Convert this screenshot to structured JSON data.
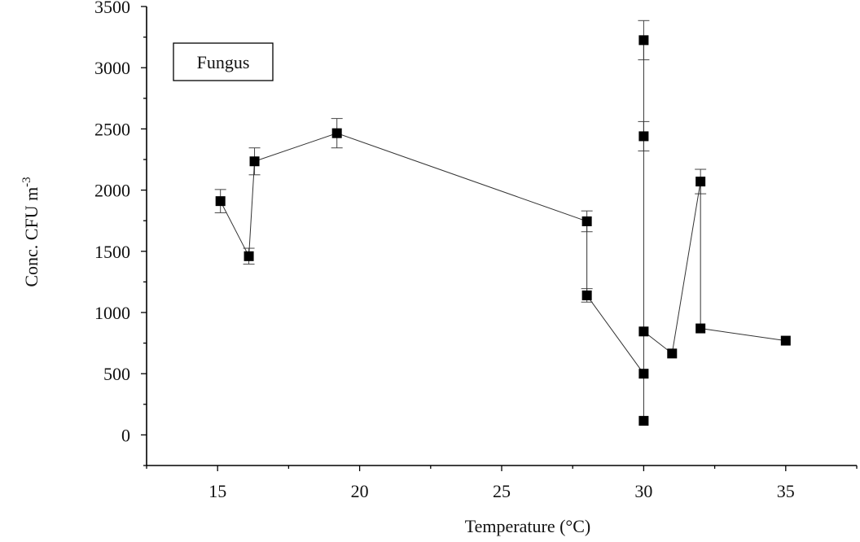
{
  "chart_data": {
    "type": "scatter",
    "title": "",
    "xlabel": "Temperature",
    "xlabel_unit": "(°C)",
    "ylabel": "Conc. CFU m",
    "ylabel_sup": "-3",
    "xlim": [
      12.5,
      37.5
    ],
    "ylim": [
      -250,
      3500
    ],
    "xticks": [
      15,
      20,
      25,
      30,
      35
    ],
    "yticks": [
      0,
      500,
      1000,
      1500,
      2000,
      2500,
      3000,
      3500
    ],
    "legend": {
      "label": "Fungus",
      "placement": "top-left"
    },
    "series": [
      {
        "name": "Fungus",
        "points": [
          {
            "x": 15.1,
            "y": 1910,
            "err": 95
          },
          {
            "x": 16.1,
            "y": 1460,
            "err": 65
          },
          {
            "x": 16.3,
            "y": 2235,
            "err": 110
          },
          {
            "x": 19.2,
            "y": 2465,
            "err": 120
          },
          {
            "x": 28.0,
            "y": 1745,
            "err": 85
          },
          {
            "x": 28.0,
            "y": 1140,
            "err": 55
          },
          {
            "x": 30.0,
            "y": 500,
            "err": 0
          },
          {
            "x": 30.0,
            "y": 115,
            "err": 0
          },
          {
            "x": 30.0,
            "y": 3225,
            "err": 160
          },
          {
            "x": 30.0,
            "y": 2440,
            "err": 120
          },
          {
            "x": 30.0,
            "y": 845,
            "err": 0
          },
          {
            "x": 31.0,
            "y": 665,
            "err": 0
          },
          {
            "x": 32.0,
            "y": 2070,
            "err": 100
          },
          {
            "x": 32.0,
            "y": 870,
            "err": 0
          },
          {
            "x": 35.0,
            "y": 770,
            "err": 0
          }
        ]
      }
    ]
  }
}
